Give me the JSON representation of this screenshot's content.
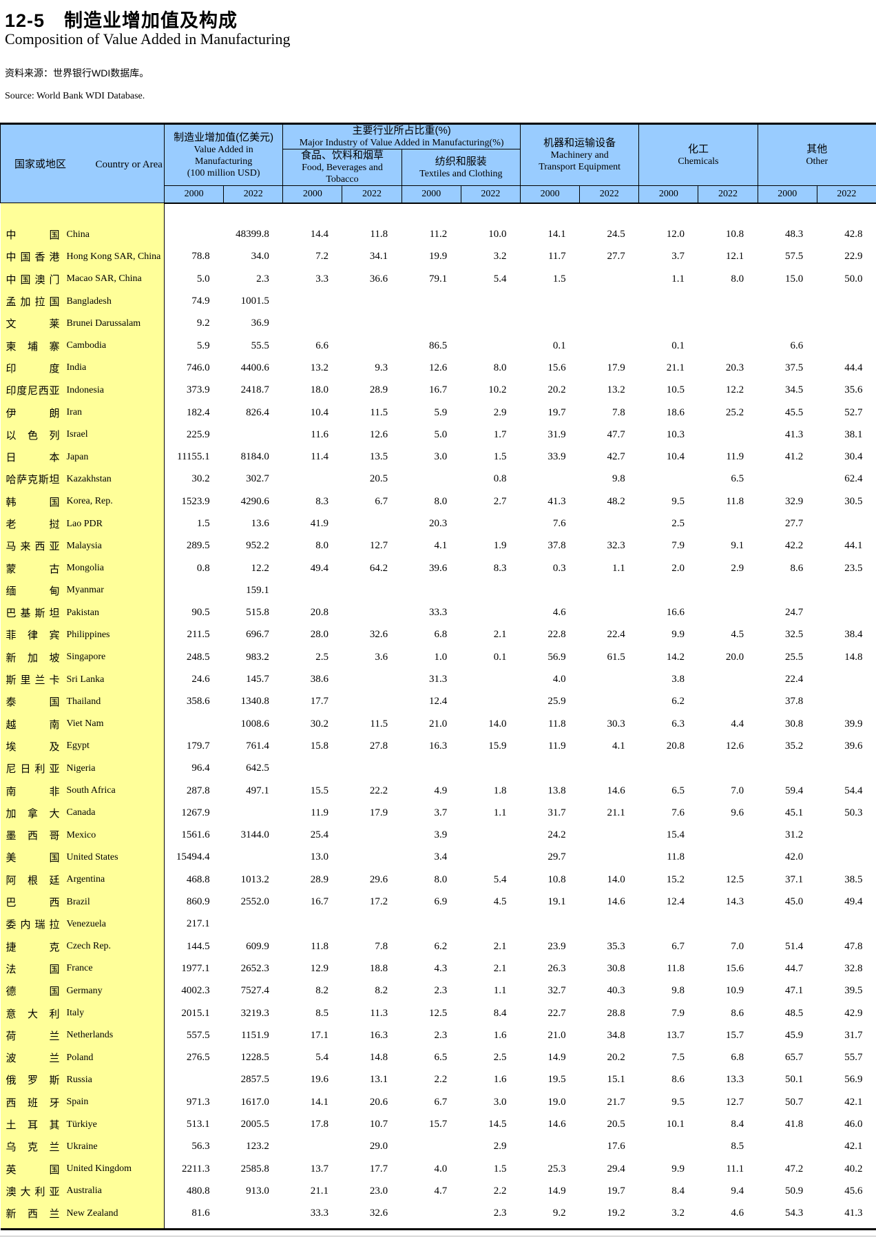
{
  "page": {
    "title_zh": "12-5　制造业增加值及构成",
    "title_en": "Composition of Value Added in Manufacturing",
    "source_zh": "资料来源：世界银行WDI数据库。",
    "source_en": "Source: World Bank WDI Database."
  },
  "colors": {
    "header_bg": "#99CCFF",
    "country_column_bg": "#FFFF99",
    "border": "#000000",
    "text": "#000000"
  },
  "table": {
    "header": {
      "country": {
        "zh": "国家或地区",
        "en": "Country or Area"
      },
      "value_added": {
        "lines": [
          "制造业增加值(亿美元)",
          "Value Added in",
          "Manufacturing",
          "(100 million USD)"
        ]
      },
      "major_industry": {
        "lines": [
          "主要行业所占比重(%)",
          "Major Industry of Value Added in Manufacturing(%)"
        ]
      },
      "food": {
        "lines": [
          "食品、饮料和烟草",
          "Food, Beverages and Tobacco"
        ]
      },
      "textiles": {
        "lines": [
          "纺织和服装",
          "Textiles and Clothing"
        ]
      },
      "machinery": {
        "lines": [
          "机器和运输设备",
          "Machinery and",
          "Transport Equipment"
        ]
      },
      "chemicals": {
        "lines": [
          "化工",
          "Chemicals"
        ]
      },
      "other": {
        "lines": [
          "其他",
          "Other"
        ]
      },
      "years": [
        "2000",
        "2022"
      ]
    },
    "rows": [
      {
        "zh": "中国",
        "en": "China",
        "v": [
          "",
          "48399.8",
          "14.4",
          "11.8",
          "11.2",
          "10.0",
          "14.1",
          "24.5",
          "12.0",
          "10.8",
          "48.3",
          "42.8"
        ]
      },
      {
        "zh": "中国香港",
        "en": "Hong Kong SAR, China",
        "v": [
          "78.8",
          "34.0",
          "7.2",
          "34.1",
          "19.9",
          "3.2",
          "11.7",
          "27.7",
          "3.7",
          "12.1",
          "57.5",
          "22.9"
        ]
      },
      {
        "zh": "中国澳门",
        "en": "Macao SAR, China",
        "v": [
          "5.0",
          "2.3",
          "3.3",
          "36.6",
          "79.1",
          "5.4",
          "1.5",
          "",
          "1.1",
          "8.0",
          "15.0",
          "50.0"
        ]
      },
      {
        "zh": "孟加拉国",
        "en": "Bangladesh",
        "v": [
          "74.9",
          "1001.5",
          "",
          "",
          "",
          "",
          "",
          "",
          "",
          "",
          "",
          ""
        ]
      },
      {
        "zh": "文莱",
        "en": "Brunei Darussalam",
        "v": [
          "9.2",
          "36.9",
          "",
          "",
          "",
          "",
          "",
          "",
          "",
          "",
          "",
          ""
        ]
      },
      {
        "zh": "柬埔寨",
        "en": "Cambodia",
        "v": [
          "5.9",
          "55.5",
          "6.6",
          "",
          "86.5",
          "",
          "0.1",
          "",
          "0.1",
          "",
          "6.6",
          ""
        ]
      },
      {
        "zh": "印度",
        "en": "India",
        "v": [
          "746.0",
          "4400.6",
          "13.2",
          "9.3",
          "12.6",
          "8.0",
          "15.6",
          "17.9",
          "21.1",
          "20.3",
          "37.5",
          "44.4"
        ]
      },
      {
        "zh": "印度尼西亚",
        "en": "Indonesia",
        "v": [
          "373.9",
          "2418.7",
          "18.0",
          "28.9",
          "16.7",
          "10.2",
          "20.2",
          "13.2",
          "10.5",
          "12.2",
          "34.5",
          "35.6"
        ]
      },
      {
        "zh": "伊朗",
        "en": "Iran",
        "v": [
          "182.4",
          "826.4",
          "10.4",
          "11.5",
          "5.9",
          "2.9",
          "19.7",
          "7.8",
          "18.6",
          "25.2",
          "45.5",
          "52.7"
        ]
      },
      {
        "zh": "以色列",
        "en": "Israel",
        "v": [
          "225.9",
          "",
          "11.6",
          "12.6",
          "5.0",
          "1.7",
          "31.9",
          "47.7",
          "10.3",
          "",
          "41.3",
          "38.1"
        ]
      },
      {
        "zh": "日本",
        "en": "Japan",
        "v": [
          "11155.1",
          "8184.0",
          "11.4",
          "13.5",
          "3.0",
          "1.5",
          "33.9",
          "42.7",
          "10.4",
          "11.9",
          "41.2",
          "30.4"
        ]
      },
      {
        "zh": "哈萨克斯坦",
        "en": "Kazakhstan",
        "v": [
          "30.2",
          "302.7",
          "",
          "20.5",
          "",
          "0.8",
          "",
          "9.8",
          "",
          "6.5",
          "",
          "62.4"
        ]
      },
      {
        "zh": "韩国",
        "en": "Korea, Rep.",
        "v": [
          "1523.9",
          "4290.6",
          "8.3",
          "6.7",
          "8.0",
          "2.7",
          "41.3",
          "48.2",
          "9.5",
          "11.8",
          "32.9",
          "30.5"
        ]
      },
      {
        "zh": "老挝",
        "en": "Lao PDR",
        "v": [
          "1.5",
          "13.6",
          "41.9",
          "",
          "20.3",
          "",
          "7.6",
          "",
          "2.5",
          "",
          "27.7",
          ""
        ]
      },
      {
        "zh": "马来西亚",
        "en": "Malaysia",
        "v": [
          "289.5",
          "952.2",
          "8.0",
          "12.7",
          "4.1",
          "1.9",
          "37.8",
          "32.3",
          "7.9",
          "9.1",
          "42.2",
          "44.1"
        ]
      },
      {
        "zh": "蒙古",
        "en": "Mongolia",
        "v": [
          "0.8",
          "12.2",
          "49.4",
          "64.2",
          "39.6",
          "8.3",
          "0.3",
          "1.1",
          "2.0",
          "2.9",
          "8.6",
          "23.5"
        ]
      },
      {
        "zh": "缅甸",
        "en": "Myanmar",
        "v": [
          "",
          "159.1",
          "",
          "",
          "",
          "",
          "",
          "",
          "",
          "",
          "",
          ""
        ]
      },
      {
        "zh": "巴基斯坦",
        "en": "Pakistan",
        "v": [
          "90.5",
          "515.8",
          "20.8",
          "",
          "33.3",
          "",
          "4.6",
          "",
          "16.6",
          "",
          "24.7",
          ""
        ]
      },
      {
        "zh": "菲律宾",
        "en": "Philippines",
        "v": [
          "211.5",
          "696.7",
          "28.0",
          "32.6",
          "6.8",
          "2.1",
          "22.8",
          "22.4",
          "9.9",
          "4.5",
          "32.5",
          "38.4"
        ]
      },
      {
        "zh": "新加坡",
        "en": "Singapore",
        "v": [
          "248.5",
          "983.2",
          "2.5",
          "3.6",
          "1.0",
          "0.1",
          "56.9",
          "61.5",
          "14.2",
          "20.0",
          "25.5",
          "14.8"
        ]
      },
      {
        "zh": "斯里兰卡",
        "en": "Sri Lanka",
        "v": [
          "24.6",
          "145.7",
          "38.6",
          "",
          "31.3",
          "",
          "4.0",
          "",
          "3.8",
          "",
          "22.4",
          ""
        ]
      },
      {
        "zh": "泰国",
        "en": "Thailand",
        "v": [
          "358.6",
          "1340.8",
          "17.7",
          "",
          "12.4",
          "",
          "25.9",
          "",
          "6.2",
          "",
          "37.8",
          ""
        ]
      },
      {
        "zh": "越南",
        "en": "Viet Nam",
        "v": [
          "",
          "1008.6",
          "30.2",
          "11.5",
          "21.0",
          "14.0",
          "11.8",
          "30.3",
          "6.3",
          "4.4",
          "30.8",
          "39.9"
        ]
      },
      {
        "zh": "埃及",
        "en": "Egypt",
        "v": [
          "179.7",
          "761.4",
          "15.8",
          "27.8",
          "16.3",
          "15.9",
          "11.9",
          "4.1",
          "20.8",
          "12.6",
          "35.2",
          "39.6"
        ]
      },
      {
        "zh": "尼日利亚",
        "en": "Nigeria",
        "v": [
          "96.4",
          "642.5",
          "",
          "",
          "",
          "",
          "",
          "",
          "",
          "",
          "",
          ""
        ]
      },
      {
        "zh": "南非",
        "en": "South Africa",
        "v": [
          "287.8",
          "497.1",
          "15.5",
          "22.2",
          "4.9",
          "1.8",
          "13.8",
          "14.6",
          "6.5",
          "7.0",
          "59.4",
          "54.4"
        ]
      },
      {
        "zh": "加拿大",
        "en": "Canada",
        "v": [
          "1267.9",
          "",
          "11.9",
          "17.9",
          "3.7",
          "1.1",
          "31.7",
          "21.1",
          "7.6",
          "9.6",
          "45.1",
          "50.3"
        ]
      },
      {
        "zh": "墨西哥",
        "en": "Mexico",
        "v": [
          "1561.6",
          "3144.0",
          "25.4",
          "",
          "3.9",
          "",
          "24.2",
          "",
          "15.4",
          "",
          "31.2",
          ""
        ]
      },
      {
        "zh": "美国",
        "en": "United States",
        "v": [
          "15494.4",
          "",
          "13.0",
          "",
          "3.4",
          "",
          "29.7",
          "",
          "11.8",
          "",
          "42.0",
          ""
        ]
      },
      {
        "zh": "阿根廷",
        "en": "Argentina",
        "v": [
          "468.8",
          "1013.2",
          "28.9",
          "29.6",
          "8.0",
          "5.4",
          "10.8",
          "14.0",
          "15.2",
          "12.5",
          "37.1",
          "38.5"
        ]
      },
      {
        "zh": "巴西",
        "en": "Brazil",
        "v": [
          "860.9",
          "2552.0",
          "16.7",
          "17.2",
          "6.9",
          "4.5",
          "19.1",
          "14.6",
          "12.4",
          "14.3",
          "45.0",
          "49.4"
        ]
      },
      {
        "zh": "委内瑞拉",
        "en": "Venezuela",
        "v": [
          "217.1",
          "",
          "",
          "",
          "",
          "",
          "",
          "",
          "",
          "",
          "",
          ""
        ]
      },
      {
        "zh": "捷克",
        "en": "Czech Rep.",
        "v": [
          "144.5",
          "609.9",
          "11.8",
          "7.8",
          "6.2",
          "2.1",
          "23.9",
          "35.3",
          "6.7",
          "7.0",
          "51.4",
          "47.8"
        ]
      },
      {
        "zh": "法国",
        "en": "France",
        "v": [
          "1977.1",
          "2652.3",
          "12.9",
          "18.8",
          "4.3",
          "2.1",
          "26.3",
          "30.8",
          "11.8",
          "15.6",
          "44.7",
          "32.8"
        ]
      },
      {
        "zh": "德国",
        "en": "Germany",
        "v": [
          "4002.3",
          "7527.4",
          "8.2",
          "8.2",
          "2.3",
          "1.1",
          "32.7",
          "40.3",
          "9.8",
          "10.9",
          "47.1",
          "39.5"
        ]
      },
      {
        "zh": "意大利",
        "en": "Italy",
        "v": [
          "2015.1",
          "3219.3",
          "8.5",
          "11.3",
          "12.5",
          "8.4",
          "22.7",
          "28.8",
          "7.9",
          "8.6",
          "48.5",
          "42.9"
        ]
      },
      {
        "zh": "荷兰",
        "en": "Netherlands",
        "v": [
          "557.5",
          "1151.9",
          "17.1",
          "16.3",
          "2.3",
          "1.6",
          "21.0",
          "34.8",
          "13.7",
          "15.7",
          "45.9",
          "31.7"
        ]
      },
      {
        "zh": "波兰",
        "en": "Poland",
        "v": [
          "276.5",
          "1228.5",
          "5.4",
          "14.8",
          "6.5",
          "2.5",
          "14.9",
          "20.2",
          "7.5",
          "6.8",
          "65.7",
          "55.7"
        ]
      },
      {
        "zh": "俄罗斯",
        "en": "Russia",
        "v": [
          "",
          "2857.5",
          "19.6",
          "13.1",
          "2.2",
          "1.6",
          "19.5",
          "15.1",
          "8.6",
          "13.3",
          "50.1",
          "56.9"
        ]
      },
      {
        "zh": "西班牙",
        "en": "Spain",
        "v": [
          "971.3",
          "1617.0",
          "14.1",
          "20.6",
          "6.7",
          "3.0",
          "19.0",
          "21.7",
          "9.5",
          "12.7",
          "50.7",
          "42.1"
        ]
      },
      {
        "zh": "土耳其",
        "en": "Türkiye",
        "v": [
          "513.1",
          "2005.5",
          "17.8",
          "10.7",
          "15.7",
          "14.5",
          "14.6",
          "20.5",
          "10.1",
          "8.4",
          "41.8",
          "46.0"
        ]
      },
      {
        "zh": "乌克兰",
        "en": "Ukraine",
        "v": [
          "56.3",
          "123.2",
          "",
          "29.0",
          "",
          "2.9",
          "",
          "17.6",
          "",
          "8.5",
          "",
          "42.1"
        ]
      },
      {
        "zh": "英国",
        "en": "United Kingdom",
        "v": [
          "2211.3",
          "2585.8",
          "13.7",
          "17.7",
          "4.0",
          "1.5",
          "25.3",
          "29.4",
          "9.9",
          "11.1",
          "47.2",
          "40.2"
        ]
      },
      {
        "zh": "澳大利亚",
        "en": "Australia",
        "v": [
          "480.8",
          "913.0",
          "21.1",
          "23.0",
          "4.7",
          "2.2",
          "14.9",
          "19.7",
          "8.4",
          "9.4",
          "50.9",
          "45.6"
        ]
      },
      {
        "zh": "新西兰",
        "en": "New Zealand",
        "v": [
          "81.6",
          "",
          "33.3",
          "32.6",
          "",
          "2.3",
          "9.2",
          "19.2",
          "3.2",
          "4.6",
          "54.3",
          "41.3"
        ]
      }
    ]
  }
}
